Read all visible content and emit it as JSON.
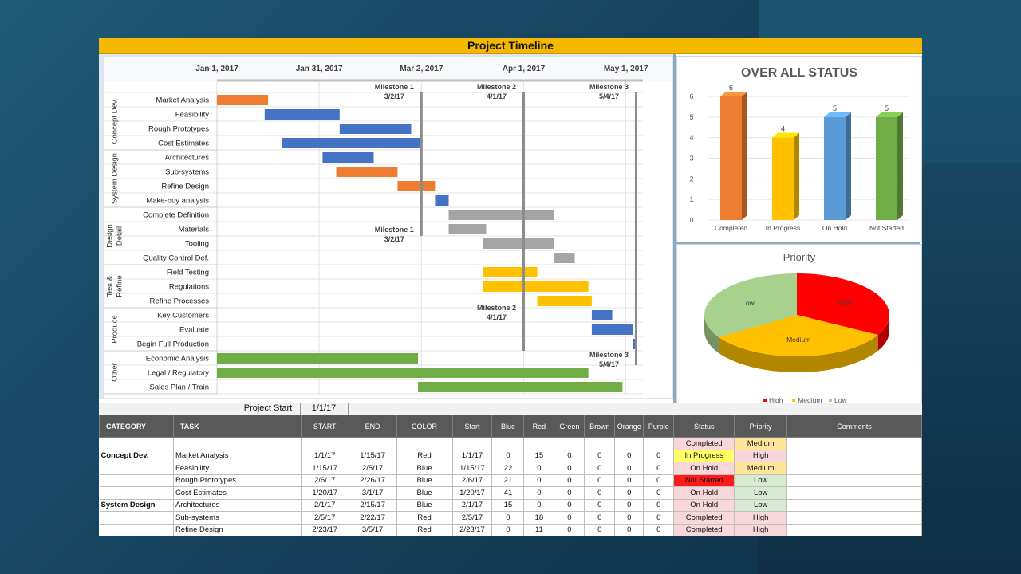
{
  "title": "Project Timeline",
  "timeline": {
    "date_labels": [
      "Jan 1, 2017",
      "Jan 31, 2017",
      "Mar 2, 2017",
      "Apr 1, 2017",
      "May 1, 2017"
    ],
    "date_days": [
      0,
      30,
      60,
      90,
      120
    ],
    "axis_range_days": [
      0,
      125
    ],
    "milestones": [
      {
        "name": "Milestone 1",
        "date": "3/2/17",
        "day": 60
      },
      {
        "name": "Milestone 2",
        "date": "4/1/17",
        "day": 90
      },
      {
        "name": "Milestone 3",
        "date": "5/4/17",
        "day": 123
      }
    ],
    "groups": [
      {
        "name": "Concept Dev.",
        "lines": [
          "Concept Dev."
        ],
        "start": 0,
        "count": 4
      },
      {
        "name": "System Design",
        "lines": [
          "System Design"
        ],
        "start": 4,
        "count": 4
      },
      {
        "name": "Detail Design",
        "lines": [
          "Design",
          "Detail"
        ],
        "start": 8,
        "count": 4
      },
      {
        "name": "Test & Refine",
        "lines": [
          "Test &",
          "Refine"
        ],
        "start": 12,
        "count": 3
      },
      {
        "name": "Produce",
        "lines": [
          "Produce"
        ],
        "start": 15,
        "count": 3
      },
      {
        "name": "Other",
        "lines": [
          "Other"
        ],
        "start": 18,
        "count": 3
      }
    ],
    "tasks": [
      {
        "name": "Market Analysis",
        "start": 0,
        "duration": 15,
        "color": "Red"
      },
      {
        "name": "Feasibility",
        "start": 14,
        "duration": 22,
        "color": "Blue"
      },
      {
        "name": "Rough Prototypes",
        "start": 36,
        "duration": 21,
        "color": "Blue"
      },
      {
        "name": "Cost Estimates",
        "start": 19,
        "duration": 41,
        "color": "Blue"
      },
      {
        "name": "Architectures",
        "start": 31,
        "duration": 15,
        "color": "Blue"
      },
      {
        "name": "Sub-systems",
        "start": 35,
        "duration": 18,
        "color": "Red"
      },
      {
        "name": "Refine Design",
        "start": 53,
        "duration": 11,
        "color": "Red"
      },
      {
        "name": "Make-buy analysis",
        "start": 64,
        "duration": 4,
        "color": "Blue"
      },
      {
        "name": "Complete Definition",
        "start": 68,
        "duration": 31,
        "color": "Gray"
      },
      {
        "name": "Materials",
        "start": 68,
        "duration": 11,
        "color": "Gray"
      },
      {
        "name": "Tooling",
        "start": 78,
        "duration": 21,
        "color": "Gray"
      },
      {
        "name": "Quality Control Def.",
        "start": 99,
        "duration": 6,
        "color": "Gray"
      },
      {
        "name": "Field Testing",
        "start": 78,
        "duration": 16,
        "color": "Yellow"
      },
      {
        "name": "Regulations",
        "start": 78,
        "duration": 31,
        "color": "Yellow"
      },
      {
        "name": "Refine Processes",
        "start": 94,
        "duration": 16,
        "color": "Yellow"
      },
      {
        "name": "Key Customers",
        "start": 110,
        "duration": 6,
        "color": "Blue"
      },
      {
        "name": "Evaluate",
        "start": 110,
        "duration": 12,
        "color": "Blue"
      },
      {
        "name": "Begin Full Production",
        "start": 122,
        "duration": 1,
        "color": "Blue"
      },
      {
        "name": "Economic Analysis",
        "start": 0,
        "duration": 59,
        "color": "Green"
      },
      {
        "name": "Legal / Regulatory",
        "start": 0,
        "duration": 109,
        "color": "Green"
      },
      {
        "name": "Sales Plan / Train",
        "start": 59,
        "duration": 60,
        "color": "Green"
      }
    ]
  },
  "colors": {
    "Red": "#ed7d31",
    "Blue": "#4472c4",
    "Gray": "#a5a5a5",
    "Yellow": "#ffc000",
    "Green": "#70ad47",
    "milestone_line": "#8c8c8c"
  },
  "chart_data": [
    {
      "type": "bar",
      "title": "OVER ALL STATUS",
      "categories": [
        "Completed",
        "In Progress",
        "On Hold",
        "Not Started"
      ],
      "values": [
        6,
        4,
        5,
        5
      ],
      "colors": [
        "#ed7d31",
        "#ffc000",
        "#5b9bd5",
        "#70ad47"
      ],
      "ylim": [
        0,
        6
      ],
      "yticks": [
        "0",
        "1",
        "2",
        "3",
        "4",
        "5",
        "6"
      ],
      "grid": true,
      "style": "3d"
    },
    {
      "type": "pie",
      "title": "Priority",
      "labels": [
        "High",
        "Medium",
        "Low"
      ],
      "values": [
        33,
        33,
        34
      ],
      "colors": [
        "#ff0000",
        "#ffc000",
        "#a9d18e"
      ],
      "legend": "bottom",
      "style": "3d"
    }
  ],
  "project_start": {
    "label": "Project Start",
    "value": "1/1/17"
  },
  "table": {
    "headers": [
      "CATEGORY",
      "TASK",
      "START",
      "END",
      "COLOR",
      "Start",
      "Blue",
      "Red",
      "Green",
      "Brown",
      "Orange",
      "Purple",
      "Status",
      "Priority",
      "Comments"
    ],
    "summary_row": {
      "status": "Completed",
      "priority": "Medium"
    },
    "rows": [
      {
        "category": "Concept Dev.",
        "task": "Market Analysis",
        "start": "1/1/17",
        "end": "1/15/17",
        "color": "Red",
        "start2": "1/1/17",
        "blue": "0",
        "red": "15",
        "green": "0",
        "brown": "0",
        "orange": "0",
        "purple": "0",
        "status": "In Progress",
        "priority": "High"
      },
      {
        "category": "",
        "task": "Feasibility",
        "start": "1/15/17",
        "end": "2/5/17",
        "color": "Blue",
        "start2": "1/15/17",
        "blue": "22",
        "red": "0",
        "green": "0",
        "brown": "0",
        "orange": "0",
        "purple": "0",
        "status": "On Hold",
        "priority": "Medium"
      },
      {
        "category": "",
        "task": "Rough Prototypes",
        "start": "2/6/17",
        "end": "2/26/17",
        "color": "Blue",
        "start2": "2/6/17",
        "blue": "21",
        "red": "0",
        "green": "0",
        "brown": "0",
        "orange": "0",
        "purple": "0",
        "status": "Not Started",
        "priority": "Low"
      },
      {
        "category": "",
        "task": "Cost Estimates",
        "start": "1/20/17",
        "end": "3/1/17",
        "color": "Blue",
        "start2": "1/20/17",
        "blue": "41",
        "red": "0",
        "green": "0",
        "brown": "0",
        "orange": "0",
        "purple": "0",
        "status": "On Hold",
        "priority": "Low"
      },
      {
        "category": "System Design",
        "task": "Architectures",
        "start": "2/1/17",
        "end": "2/15/17",
        "color": "Blue",
        "start2": "2/1/17",
        "blue": "15",
        "red": "0",
        "green": "0",
        "brown": "0",
        "orange": "0",
        "purple": "0",
        "status": "On Hold",
        "priority": "Low"
      },
      {
        "category": "",
        "task": "Sub-systems",
        "start": "2/5/17",
        "end": "2/22/17",
        "color": "Red",
        "start2": "2/5/17",
        "blue": "0",
        "red": "18",
        "green": "0",
        "brown": "0",
        "orange": "0",
        "purple": "0",
        "status": "Completed",
        "priority": "High"
      },
      {
        "category": "",
        "task": "Refine Design",
        "start": "2/23/17",
        "end": "3/5/17",
        "color": "Red",
        "start2": "2/23/17",
        "blue": "0",
        "red": "11",
        "green": "0",
        "brown": "0",
        "orange": "0",
        "purple": "0",
        "status": "Completed",
        "priority": "High"
      }
    ]
  }
}
